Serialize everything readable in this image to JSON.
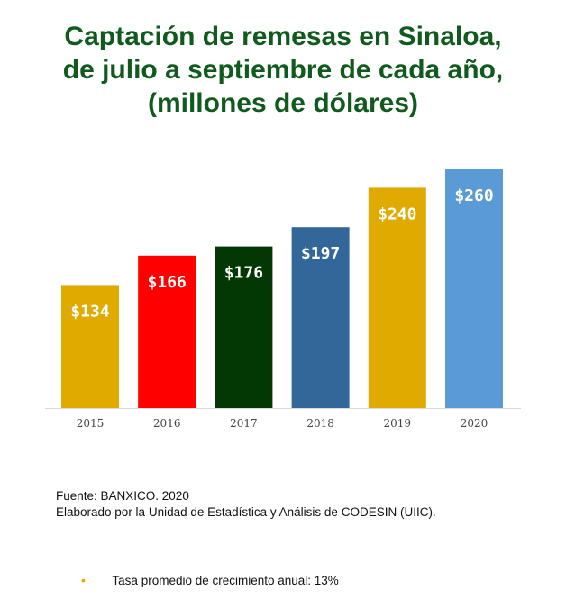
{
  "chart_data": {
    "type": "bar",
    "title": [
      "Captación de remesas en Sinaloa,",
      "de julio a septiembre de cada año,",
      "(millones de dólares)"
    ],
    "categories": [
      "2015",
      "2016",
      "2017",
      "2018",
      "2019",
      "2020"
    ],
    "values": [
      134,
      166,
      176,
      197,
      240,
      260
    ],
    "value_labels": [
      "$134",
      "$166",
      "$176",
      "$197",
      "$240",
      "$260"
    ],
    "colors": [
      "#dfab00",
      "#fe0000",
      "#033703",
      "#336699",
      "#dfab00",
      "#5b9bd5"
    ],
    "xlabel": "",
    "ylabel": "",
    "ylim": [
      0,
      260
    ],
    "grid": false,
    "legend": "none"
  },
  "source": {
    "line1": "Fuente: BANXICO. 2020",
    "line2": "Elaborado por la Unidad de Estadística y Análisis de CODESIN (UIIC)."
  },
  "note": {
    "bullet": "•",
    "text": "Tasa promedio de crecimiento anual: 13%"
  }
}
